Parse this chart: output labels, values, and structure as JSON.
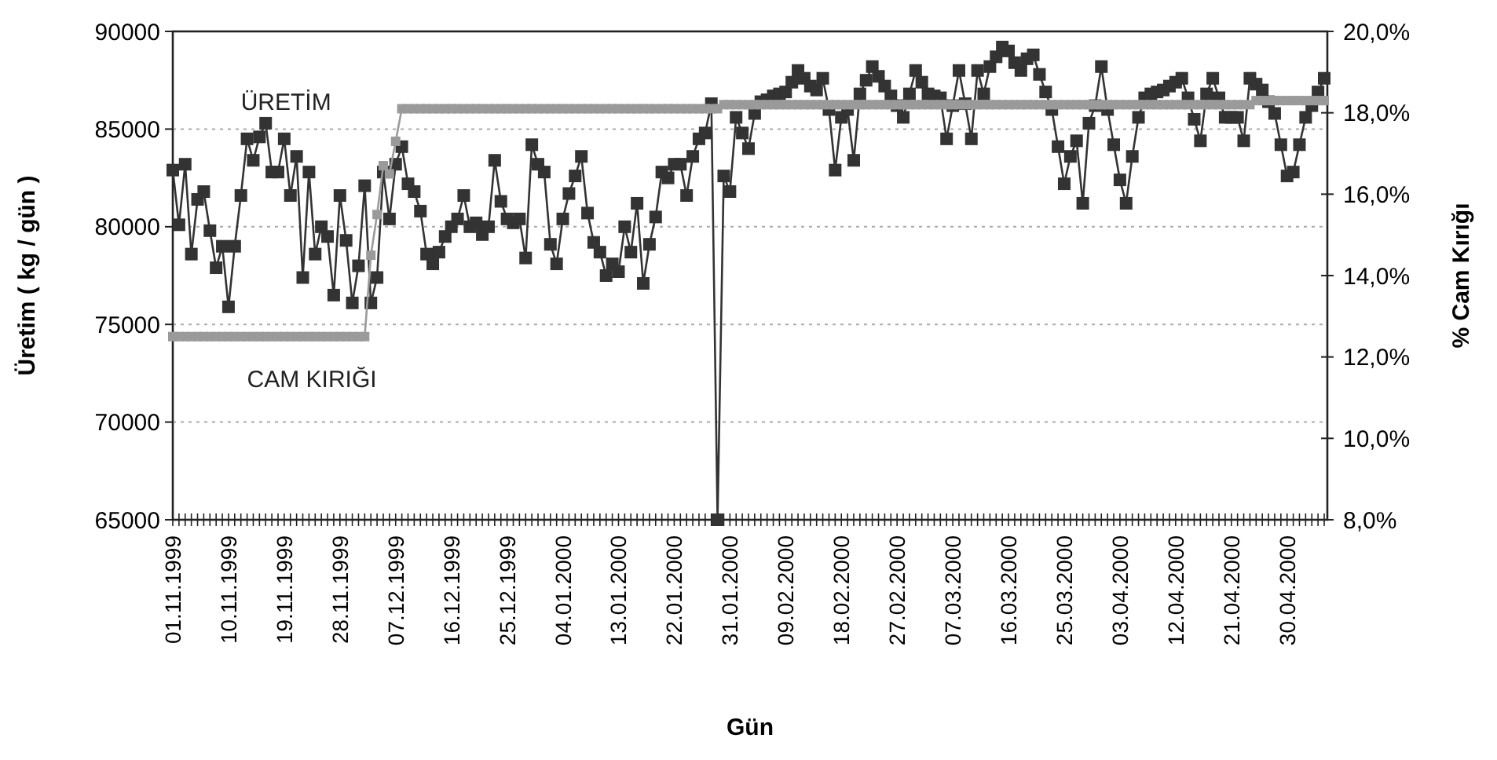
{
  "chart_data": {
    "type": "line",
    "xlabel": "Gün",
    "ylabel": "Üretim  ( kg / gün )",
    "y2label": "% Cam Kırığı",
    "categories": [
      "01.11.1999",
      null,
      null,
      null,
      null,
      null,
      null,
      null,
      null,
      "10.11.1999",
      null,
      null,
      null,
      null,
      null,
      null,
      null,
      null,
      "19.11.1999",
      null,
      null,
      null,
      null,
      null,
      null,
      null,
      null,
      "28.11.1999",
      null,
      null,
      null,
      null,
      null,
      null,
      null,
      null,
      "07.12.1999",
      null,
      null,
      null,
      null,
      null,
      null,
      null,
      null,
      "16.12.1999",
      null,
      null,
      null,
      null,
      null,
      null,
      null,
      null,
      "25.12.1999",
      null,
      null,
      null,
      null,
      null,
      null,
      null,
      null,
      "04.01.2000",
      null,
      null,
      null,
      null,
      null,
      null,
      null,
      null,
      "13.01.2000",
      null,
      null,
      null,
      null,
      null,
      null,
      null,
      null,
      "22.01.2000",
      null,
      null,
      null,
      null,
      null,
      null,
      null,
      null,
      "31.01.2000",
      null,
      null,
      null,
      null,
      null,
      null,
      null,
      null,
      "09.02.2000",
      null,
      null,
      null,
      null,
      null,
      null,
      null,
      null,
      "18.02.2000",
      null,
      null,
      null,
      null,
      null,
      null,
      null,
      null,
      "27.02.2000",
      null,
      null,
      null,
      null,
      null,
      null,
      null,
      null,
      "07.03.2000",
      null,
      null,
      null,
      null,
      null,
      null,
      null,
      null,
      "16.03.2000",
      null,
      null,
      null,
      null,
      null,
      null,
      null,
      null,
      "25.03.2000",
      null,
      null,
      null,
      null,
      null,
      null,
      null,
      null,
      "03.04.2000",
      null,
      null,
      null,
      null,
      null,
      null,
      null,
      null,
      "12.04.2000",
      null,
      null,
      null,
      null,
      null,
      null,
      null,
      null,
      "21.04.2000",
      null,
      null,
      null,
      null,
      null,
      null,
      null,
      null,
      "30.04.2000",
      null,
      null,
      null,
      null,
      null,
      null
    ],
    "series": [
      {
        "name": "ÜRETİM",
        "color": "#333333",
        "marker": "square",
        "values": [
          82900,
          80100,
          83200,
          78600,
          81400,
          81800,
          79800,
          77900,
          79000,
          75900,
          79000,
          81600,
          84500,
          83400,
          84600,
          85300,
          82800,
          82800,
          84500,
          81600,
          83600,
          77400,
          82800,
          78600,
          80000,
          79500,
          76500,
          81600,
          79300,
          76100,
          78000,
          82100,
          76100,
          77400,
          82800,
          80400,
          83200,
          84100,
          82200,
          81800,
          80800,
          78600,
          78100,
          78700,
          79500,
          80000,
          80400,
          81600,
          80000,
          80200,
          79600,
          80000,
          83400,
          81300,
          80400,
          80200,
          80400,
          78400,
          84200,
          83200,
          82800,
          79100,
          78100,
          80400,
          81700,
          82600,
          83600,
          80700,
          79200,
          78700,
          77500,
          78100,
          77700,
          80000,
          78700,
          81200,
          77100,
          79100,
          80500,
          82800,
          82500,
          83200,
          83200,
          81600,
          83600,
          84500,
          84800,
          86300,
          65000,
          82600,
          81800,
          85600,
          84800,
          84000,
          85800,
          86400,
          86500,
          86700,
          86800,
          86900,
          87400,
          88000,
          87600,
          87200,
          87000,
          87600,
          86000,
          82900,
          85600,
          86000,
          83400,
          86800,
          87500,
          88200,
          87700,
          87200,
          86700,
          86200,
          85600,
          86800,
          88000,
          87400,
          86800,
          86700,
          86600,
          84500,
          86200,
          88000,
          86300,
          84500,
          88000,
          86800,
          88200,
          88700,
          89200,
          89000,
          88400,
          88000,
          88600,
          88800,
          87800,
          86900,
          86000,
          84100,
          82200,
          83600,
          84400,
          81200,
          85300,
          86200,
          88200,
          86000,
          84200,
          82400,
          81200,
          83600,
          85600,
          86600,
          86800,
          86900,
          87000,
          87200,
          87400,
          87600,
          86600,
          85500,
          84400,
          86800,
          87600,
          86600,
          85600,
          85600,
          85600,
          84400,
          87600,
          87300,
          87000,
          86400,
          85800,
          84200,
          82600,
          82800,
          84200,
          85600,
          86200,
          86900,
          87600
        ]
      },
      {
        "name": "CAM KIRIĞI",
        "color": "#9a9a9a",
        "marker": "square",
        "axis": "y2",
        "values": [
          12.5,
          12.5,
          12.5,
          12.5,
          12.5,
          12.5,
          12.5,
          12.5,
          12.5,
          12.5,
          12.5,
          12.5,
          12.5,
          12.5,
          12.5,
          12.5,
          12.5,
          12.5,
          12.5,
          12.5,
          12.5,
          12.5,
          12.5,
          12.5,
          12.5,
          12.5,
          12.5,
          12.5,
          12.5,
          12.5,
          12.5,
          12.5,
          14.5,
          15.5,
          16.7,
          16.5,
          17.3,
          18.1,
          18.1,
          18.1,
          18.1,
          18.1,
          18.1,
          18.1,
          18.1,
          18.1,
          18.1,
          18.1,
          18.1,
          18.1,
          18.1,
          18.1,
          18.1,
          18.1,
          18.1,
          18.1,
          18.1,
          18.1,
          18.1,
          18.1,
          18.1,
          18.1,
          18.1,
          18.1,
          18.1,
          18.1,
          18.1,
          18.1,
          18.1,
          18.1,
          18.1,
          18.1,
          18.1,
          18.1,
          18.1,
          18.1,
          18.1,
          18.1,
          18.1,
          18.1,
          18.1,
          18.1,
          18.1,
          18.1,
          18.1,
          18.1,
          18.1,
          18.1,
          18.1,
          18.2,
          18.2,
          18.2,
          18.2,
          18.2,
          18.2,
          18.2,
          18.2,
          18.2,
          18.2,
          18.2,
          18.2,
          18.2,
          18.2,
          18.2,
          18.2,
          18.2,
          18.2,
          18.2,
          18.2,
          18.2,
          18.2,
          18.2,
          18.2,
          18.2,
          18.2,
          18.2,
          18.2,
          18.2,
          18.2,
          18.2,
          18.2,
          18.2,
          18.2,
          18.2,
          18.2,
          18.2,
          18.2,
          18.2,
          18.2,
          18.2,
          18.2,
          18.2,
          18.2,
          18.2,
          18.2,
          18.2,
          18.2,
          18.2,
          18.2,
          18.2,
          18.2,
          18.2,
          18.2,
          18.2,
          18.2,
          18.2,
          18.2,
          18.2,
          18.2,
          18.2,
          18.2,
          18.2,
          18.2,
          18.2,
          18.2,
          18.2,
          18.2,
          18.2,
          18.2,
          18.2,
          18.2,
          18.2,
          18.2,
          18.2,
          18.2,
          18.2,
          18.2,
          18.2,
          18.2,
          18.2,
          18.2,
          18.2,
          18.2,
          18.2,
          18.2,
          18.3,
          18.3,
          18.3,
          18.3,
          18.3,
          18.3,
          18.3,
          18.3,
          18.3,
          18.3,
          18.3,
          18.3
        ]
      }
    ],
    "ylim": [
      65000,
      90000
    ],
    "yticks": [
      65000,
      70000,
      75000,
      80000,
      85000,
      90000
    ],
    "y2lim": [
      8,
      20
    ],
    "y2ticks": [
      {
        "value": 8,
        "label": "8,0%"
      },
      {
        "value": 10,
        "label": "10,0%"
      },
      {
        "value": 12,
        "label": "12,0%"
      },
      {
        "value": 14,
        "label": "14,0%"
      },
      {
        "value": 16,
        "label": "16,0%"
      },
      {
        "value": 18,
        "label": "18,0%"
      },
      {
        "value": 20,
        "label": "20,0%"
      }
    ],
    "grid": "y",
    "line_style": "solid"
  }
}
